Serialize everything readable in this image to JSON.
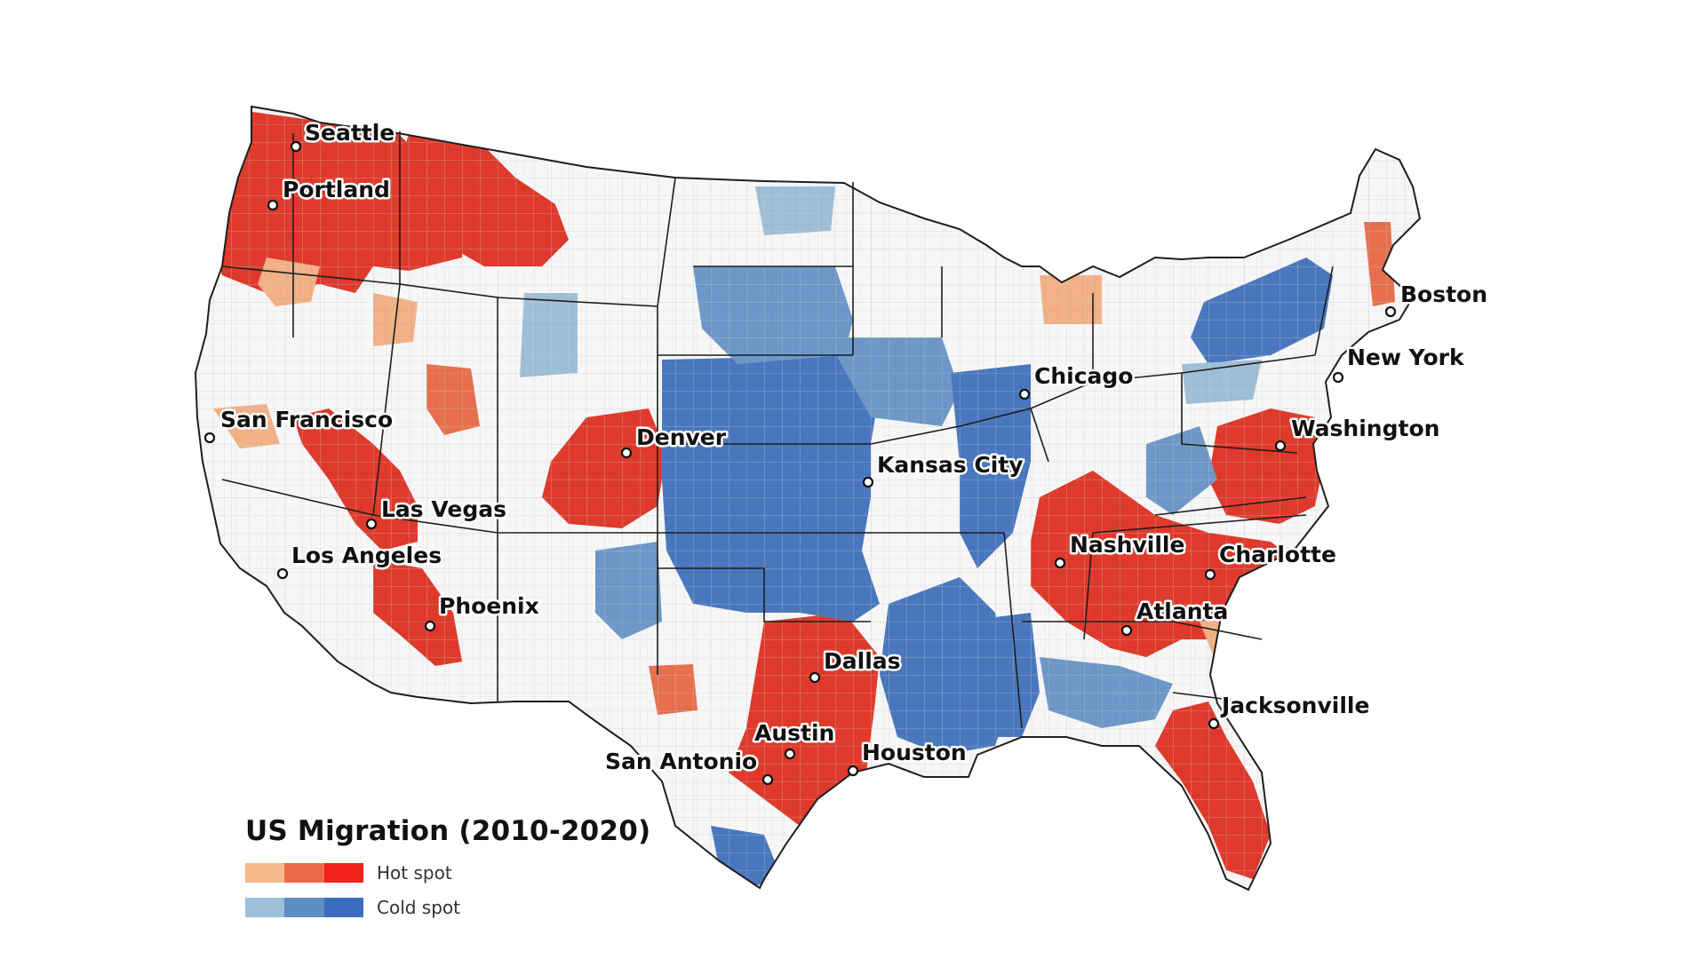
{
  "colors": {
    "hot": [
      "#f6b98c",
      "#ec6a47",
      "#f4221a"
    ],
    "cold": [
      "#9fc0da",
      "#5e8ec2",
      "#3b6ec2"
    ],
    "hot_region": "#df3a2c",
    "hot_light": "#f3b185",
    "hot_mid": "#e8704f",
    "cold_region": "#4a78bf",
    "cold_light": "#9fbfd8",
    "cold_mid": "#6e98c8",
    "land": "#f7f7f7",
    "county_line": "#c9c9c9",
    "state_line": "#1e1e1e"
  },
  "cities": [
    {
      "name": "Seattle"
    },
    {
      "name": "Portland"
    },
    {
      "name": "San Francisco"
    },
    {
      "name": "Las Vegas"
    },
    {
      "name": "Los Angeles"
    },
    {
      "name": "Phoenix"
    },
    {
      "name": "Denver"
    },
    {
      "name": "Kansas City"
    },
    {
      "name": "Dallas"
    },
    {
      "name": "Austin"
    },
    {
      "name": "San Antonio"
    },
    {
      "name": "Houston"
    },
    {
      "name": "Chicago"
    },
    {
      "name": "Nashville"
    },
    {
      "name": "Atlanta"
    },
    {
      "name": "Charlotte"
    },
    {
      "name": "Jacksonville"
    },
    {
      "name": "Washington"
    },
    {
      "name": "New York"
    },
    {
      "name": "Boston"
    }
  ],
  "legend": {
    "title": "US Migration (2010-2020)",
    "hot_label": "Hot spot",
    "cold_label": "Cold spot"
  }
}
